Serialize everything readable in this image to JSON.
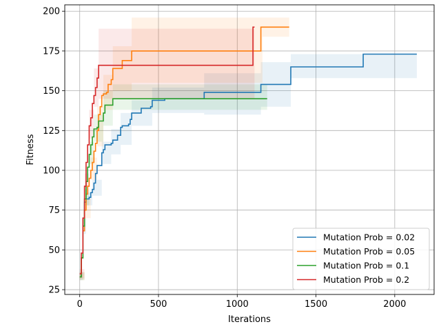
{
  "chart_data": {
    "type": "line",
    "title": "",
    "xlabel": "Iterations",
    "ylabel": "Fitness",
    "xlim": [
      -95,
      2250
    ],
    "ylim": [
      22,
      204
    ],
    "xticks": [
      0,
      500,
      1000,
      1500,
      2000
    ],
    "yticks": [
      25,
      50,
      75,
      100,
      125,
      150,
      175,
      200
    ],
    "grid": true,
    "legend_position": "lower-right",
    "series": [
      {
        "name": "Mutation Prob = 0.02",
        "color": "#1f77b4",
        "points": [
          [
            0,
            33
          ],
          [
            10,
            45
          ],
          [
            20,
            65
          ],
          [
            30,
            80
          ],
          [
            40,
            82
          ],
          [
            60,
            83
          ],
          [
            70,
            86
          ],
          [
            80,
            88
          ],
          [
            90,
            92
          ],
          [
            100,
            98
          ],
          [
            110,
            103
          ],
          [
            130,
            103
          ],
          [
            140,
            111
          ],
          [
            150,
            113
          ],
          [
            160,
            116
          ],
          [
            200,
            117
          ],
          [
            210,
            119
          ],
          [
            240,
            122
          ],
          [
            260,
            127
          ],
          [
            270,
            128
          ],
          [
            310,
            129
          ],
          [
            320,
            132
          ],
          [
            330,
            136
          ],
          [
            380,
            136
          ],
          [
            390,
            139
          ],
          [
            450,
            140
          ],
          [
            460,
            144
          ],
          [
            540,
            145
          ],
          [
            780,
            145
          ],
          [
            790,
            149
          ],
          [
            1140,
            149
          ],
          [
            1150,
            154
          ],
          [
            1330,
            154
          ],
          [
            1340,
            165
          ],
          [
            1790,
            165
          ],
          [
            1800,
            173
          ],
          [
            2140,
            173
          ]
        ],
        "band": [
          [
            0,
            31,
            36
          ],
          [
            20,
            60,
            70
          ],
          [
            40,
            78,
            86
          ],
          [
            80,
            84,
            94
          ],
          [
            140,
            104,
            118
          ],
          [
            200,
            110,
            126
          ],
          [
            260,
            116,
            136
          ],
          [
            330,
            128,
            144
          ],
          [
            460,
            136,
            152
          ],
          [
            790,
            135,
            161
          ],
          [
            1150,
            140,
            168
          ],
          [
            1340,
            158,
            173
          ],
          [
            1800,
            158,
            173
          ],
          [
            2140,
            158,
            173
          ]
        ]
      },
      {
        "name": "Mutation Prob = 0.05",
        "color": "#ff7f0e",
        "points": [
          [
            0,
            33
          ],
          [
            10,
            45
          ],
          [
            20,
            62
          ],
          [
            30,
            75
          ],
          [
            40,
            85
          ],
          [
            50,
            90
          ],
          [
            60,
            95
          ],
          [
            70,
            100
          ],
          [
            80,
            105
          ],
          [
            90,
            112
          ],
          [
            100,
            117
          ],
          [
            110,
            125
          ],
          [
            120,
            135
          ],
          [
            130,
            140
          ],
          [
            140,
            147
          ],
          [
            150,
            148
          ],
          [
            170,
            149
          ],
          [
            180,
            154
          ],
          [
            200,
            157
          ],
          [
            210,
            164
          ],
          [
            260,
            164
          ],
          [
            270,
            169
          ],
          [
            320,
            169
          ],
          [
            330,
            175
          ],
          [
            1140,
            175
          ],
          [
            1150,
            190
          ],
          [
            1330,
            190
          ]
        ],
        "band": [
          [
            0,
            31,
            36
          ],
          [
            30,
            70,
            82
          ],
          [
            70,
            94,
            108
          ],
          [
            110,
            115,
            140
          ],
          [
            150,
            138,
            160
          ],
          [
            210,
            150,
            178
          ],
          [
            330,
            155,
            196
          ],
          [
            1150,
            155,
            196
          ],
          [
            1160,
            184,
            196
          ],
          [
            1330,
            184,
            196
          ]
        ]
      },
      {
        "name": "Mutation Prob = 0.1",
        "color": "#2ca02c",
        "points": [
          [
            0,
            33
          ],
          [
            10,
            45
          ],
          [
            20,
            65
          ],
          [
            30,
            82
          ],
          [
            40,
            93
          ],
          [
            50,
            102
          ],
          [
            60,
            110
          ],
          [
            70,
            116
          ],
          [
            80,
            121
          ],
          [
            90,
            126
          ],
          [
            110,
            127
          ],
          [
            120,
            131
          ],
          [
            140,
            131
          ],
          [
            150,
            136
          ],
          [
            160,
            141
          ],
          [
            200,
            141
          ],
          [
            210,
            145
          ],
          [
            1190,
            145
          ]
        ],
        "band": [
          [
            0,
            31,
            36
          ],
          [
            30,
            78,
            88
          ],
          [
            60,
            104,
            118
          ],
          [
            90,
            118,
            135
          ],
          [
            150,
            128,
            150
          ],
          [
            210,
            138,
            154
          ],
          [
            1190,
            138,
            154
          ]
        ]
      },
      {
        "name": "Mutation Prob = 0.2",
        "color": "#d62728",
        "points": [
          [
            0,
            35
          ],
          [
            10,
            48
          ],
          [
            20,
            70
          ],
          [
            30,
            90
          ],
          [
            40,
            105
          ],
          [
            50,
            116
          ],
          [
            60,
            128
          ],
          [
            70,
            133
          ],
          [
            80,
            142
          ],
          [
            90,
            147
          ],
          [
            100,
            152
          ],
          [
            110,
            158
          ],
          [
            120,
            166
          ],
          [
            1090,
            166
          ],
          [
            1100,
            190
          ],
          [
            1110,
            190
          ]
        ],
        "band": [
          [
            0,
            32,
            38
          ],
          [
            30,
            85,
            98
          ],
          [
            60,
            120,
            138
          ],
          [
            90,
            140,
            164
          ],
          [
            120,
            145,
            189
          ],
          [
            1090,
            145,
            189
          ],
          [
            1110,
            145,
            189
          ]
        ]
      }
    ]
  }
}
